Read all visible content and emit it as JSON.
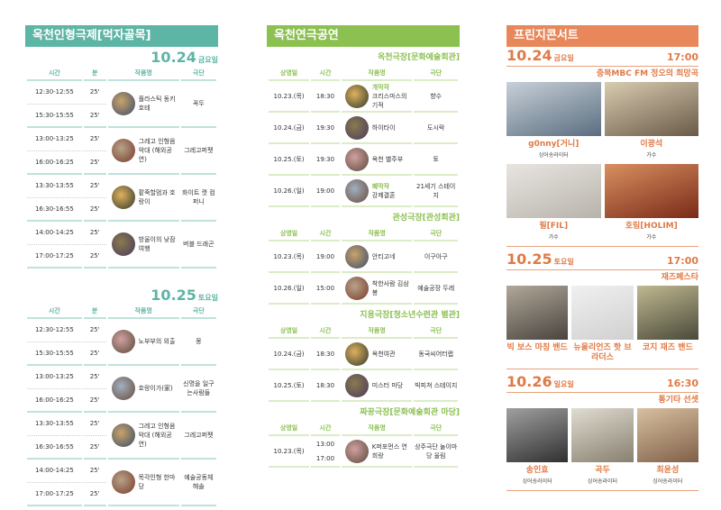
{
  "colors": {
    "puppet": "#5db5a5",
    "theater": "#8cc152",
    "fringe": "#e8875a"
  },
  "puppet": {
    "title": "옥천인형극제[먹자골목]",
    "headers": [
      "시간",
      "분",
      "작품명",
      "극단"
    ],
    "days": [
      {
        "date": "10.24",
        "weekday": "금요일",
        "rows": [
          {
            "times": [
              "12:30-12:55",
              "15:30-15:55"
            ],
            "mins": [
              "25'",
              "25'"
            ],
            "title": "플라스틱 동키호테",
            "troupe": "꼭두"
          },
          {
            "times": [
              "13:00-13:25",
              "16:00-16:25"
            ],
            "mins": [
              "25'",
              "25'"
            ],
            "title": "그레고 인형음악대 (해외공연)",
            "troupe": "그레고퍼펫"
          },
          {
            "times": [
              "13:30-13:55",
              "16:30-16:55"
            ],
            "mins": [
              "25'",
              "25'"
            ],
            "title": "팥죽할멈과 호랑이",
            "troupe": "화이트 캣 컴퍼니"
          },
          {
            "times": [
              "14:00-14:25",
              "17:00-17:25"
            ],
            "mins": [
              "25'",
              "25'"
            ],
            "title": "방울이의 낮잠여행",
            "troupe": "버블 드래곤"
          }
        ]
      },
      {
        "date": "10.25",
        "weekday": "토요일",
        "rows": [
          {
            "times": [
              "12:30-12:55",
              "15:30-15:55"
            ],
            "mins": [
              "25'",
              "25'"
            ],
            "title": "노부부의 외출",
            "troupe": "몽"
          },
          {
            "times": [
              "13:00-13:25",
              "16:00-16:25"
            ],
            "mins": [
              "25'",
              "25'"
            ],
            "title": "호랑이가(家)",
            "troupe": "신명을 일구는사람들"
          },
          {
            "times": [
              "13:30-13:55",
              "16:30-16:55"
            ],
            "mins": [
              "25'",
              "25'"
            ],
            "title": "그레고 인형음악대 (해외공연)",
            "troupe": "그레고퍼펫"
          },
          {
            "times": [
              "14:00-14:25",
              "17:00-17:25"
            ],
            "mins": [
              "25'",
              "25'"
            ],
            "title": "목각인형 한마당",
            "troupe": "예술공동체 해솔"
          }
        ]
      }
    ]
  },
  "theater": {
    "title": "옥천연극공연",
    "headers": [
      "상영일",
      "시간",
      "작품명",
      "극단"
    ],
    "venues": [
      {
        "name": "옥천극장[문화예술회관]",
        "rows": [
          {
            "date": "10.23.(목)",
            "times": [
              "18:30"
            ],
            "tag": "개막작",
            "title": "크리스마스의 기적",
            "troupe": "향수"
          },
          {
            "date": "10.24.(금)",
            "times": [
              "19:30"
            ],
            "title": "하이타이",
            "troupe": "도시락"
          },
          {
            "date": "10.25.(토)",
            "times": [
              "19:30"
            ],
            "title": "옥천 별주부",
            "troupe": "토"
          },
          {
            "date": "10.26.(일)",
            "times": [
              "19:00"
            ],
            "tag": "폐막작",
            "title": "강제결혼",
            "troupe": "21세기 스테이지"
          }
        ]
      },
      {
        "name": "관성극장[관성회관]",
        "rows": [
          {
            "date": "10.23.(목)",
            "times": [
              "19:00"
            ],
            "title": "안티고네",
            "troupe": "이구아구"
          },
          {
            "date": "10.26.(일)",
            "times": [
              "15:00"
            ],
            "title": "착한사람 김삼봉",
            "troupe": "예술공장 두레"
          }
        ]
      },
      {
        "name": "지용극장[청소년수련관 별관]",
        "rows": [
          {
            "date": "10.24.(금)",
            "times": [
              "18:30"
            ],
            "title": "옥천여관",
            "troupe": "동국씨어터랩"
          },
          {
            "date": "10.25.(토)",
            "times": [
              "18:30"
            ],
            "title": "미스터 마당",
            "troupe": "빅피쳐 스테이지"
          }
        ]
      },
      {
        "name": "짜꿍극장[문화예술회관 마당]",
        "rows": [
          {
            "date": "10.23.(목)",
            "times": [
              "13:00",
              "17:00"
            ],
            "title": "K퍼포먼스 연희랑",
            "troupe": "상주극단 놀이마당 울림"
          }
        ]
      }
    ]
  },
  "fringe": {
    "title": "프린지콘서트",
    "days": [
      {
        "date": "10.24",
        "weekday": "금요일",
        "time": "17:00",
        "subtitle": "충북MBC FM 정오의 희망곡",
        "cols": 2,
        "artists": [
          {
            "name": "g0nny[거니]",
            "role": "싱어송라이터"
          },
          {
            "name": "이광석",
            "role": "가수"
          },
          {
            "name": "필[FIL]",
            "role": "가수"
          },
          {
            "name": "호림[HOLIM]",
            "role": "가수"
          }
        ]
      },
      {
        "date": "10.25",
        "weekday": "토요일",
        "time": "17:00",
        "subtitle": "재즈페스타",
        "cols": 3,
        "artists": [
          {
            "name": "빅 보스 마칭 밴드"
          },
          {
            "name": "뉴올리언즈 핫 브라더스"
          },
          {
            "name": "코지 재즈 밴드"
          }
        ]
      },
      {
        "date": "10.26",
        "weekday": "일요일",
        "time": "16:30",
        "subtitle": "통기타 선셋",
        "cols": 3,
        "artists": [
          {
            "name": "송인효",
            "role": "싱어송라이터"
          },
          {
            "name": "곡두",
            "role": "싱어송라이터"
          },
          {
            "name": "최윤성",
            "role": "싱어송라이터"
          }
        ]
      }
    ]
  }
}
